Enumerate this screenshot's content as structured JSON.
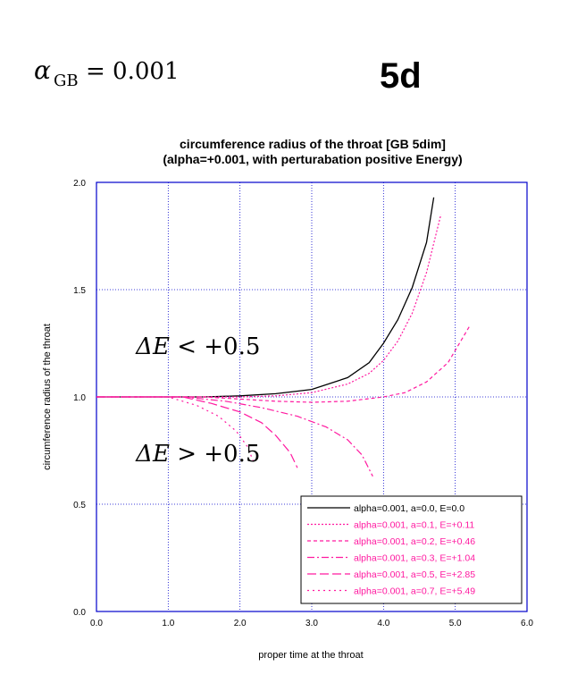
{
  "header": {
    "alpha_symbol": "α",
    "alpha_subscript": "GB",
    "alpha_value": "= 0.001",
    "dimension_label": "5d"
  },
  "chart_data": {
    "type": "line",
    "title": "circumference radius of the throat [GB 5dim]",
    "subtitle": "(alpha=+0.001, with perturabation positive Energy)",
    "xlabel": "proper time at the throat",
    "ylabel": "circumference radius of the throat",
    "xlim": [
      0,
      6
    ],
    "ylim": [
      0,
      2
    ],
    "xticks": [
      "0.0",
      "1.0",
      "2.0",
      "3.0",
      "4.0",
      "5.0",
      "6.0"
    ],
    "yticks": [
      "0.0",
      "0.5",
      "1.0",
      "1.5",
      "2.0"
    ],
    "grid": true,
    "legend_position": "bottom-right",
    "annotations": [
      {
        "prefix": "ΔE",
        "rest": " < +0.5",
        "x": 0.55,
        "y": 1.2
      },
      {
        "prefix": "ΔE",
        "rest": " > +0.5",
        "x": 0.55,
        "y": 0.7
      }
    ],
    "series": [
      {
        "name": "alpha=0.001, a=0.0, E=0.0",
        "color": "#000000",
        "dash": "",
        "points": [
          [
            0,
            1.0
          ],
          [
            1.5,
            1.0
          ],
          [
            2.0,
            1.005
          ],
          [
            2.5,
            1.015
          ],
          [
            3.0,
            1.035
          ],
          [
            3.5,
            1.09
          ],
          [
            3.8,
            1.16
          ],
          [
            4.0,
            1.25
          ],
          [
            4.2,
            1.36
          ],
          [
            4.4,
            1.51
          ],
          [
            4.6,
            1.72
          ],
          [
            4.7,
            1.93
          ]
        ]
      },
      {
        "name": "alpha=0.001, a=0.1, E=+0.11",
        "color": "#ff1aa0",
        "dash": "2,2",
        "points": [
          [
            0,
            1.0
          ],
          [
            1.5,
            1.0
          ],
          [
            2.0,
            1.0
          ],
          [
            2.5,
            1.005
          ],
          [
            3.0,
            1.02
          ],
          [
            3.5,
            1.06
          ],
          [
            3.8,
            1.11
          ],
          [
            4.0,
            1.17
          ],
          [
            4.2,
            1.26
          ],
          [
            4.4,
            1.39
          ],
          [
            4.6,
            1.58
          ],
          [
            4.8,
            1.85
          ]
        ]
      },
      {
        "name": "alpha=0.001, a=0.2, E=+0.46",
        "color": "#ff1aa0",
        "dash": "4,3",
        "points": [
          [
            0,
            1.0
          ],
          [
            1.5,
            1.0
          ],
          [
            2.0,
            0.99
          ],
          [
            2.5,
            0.98
          ],
          [
            3.0,
            0.975
          ],
          [
            3.5,
            0.98
          ],
          [
            4.0,
            1.0
          ],
          [
            4.3,
            1.02
          ],
          [
            4.6,
            1.07
          ],
          [
            4.9,
            1.16
          ],
          [
            5.2,
            1.33
          ]
        ]
      },
      {
        "name": "alpha=0.001, a=0.3, E=+1.04",
        "color": "#ff1aa0",
        "dash": "8,3,2,3",
        "points": [
          [
            0,
            1.0
          ],
          [
            1.2,
            1.0
          ],
          [
            1.8,
            0.98
          ],
          [
            2.3,
            0.95
          ],
          [
            2.8,
            0.91
          ],
          [
            3.2,
            0.86
          ],
          [
            3.5,
            0.8
          ],
          [
            3.7,
            0.73
          ],
          [
            3.85,
            0.63
          ]
        ]
      },
      {
        "name": "alpha=0.001, a=0.5, E=+2.85",
        "color": "#ff1aa0",
        "dash": "10,4",
        "points": [
          [
            0,
            1.0
          ],
          [
            1.2,
            1.0
          ],
          [
            1.6,
            0.97
          ],
          [
            2.0,
            0.93
          ],
          [
            2.3,
            0.88
          ],
          [
            2.5,
            0.82
          ],
          [
            2.7,
            0.74
          ],
          [
            2.8,
            0.67
          ]
        ]
      },
      {
        "name": "alpha=0.001, a=0.7, E=+5.49",
        "color": "#ff1aa0",
        "dash": "2,4",
        "points": [
          [
            0,
            1.0
          ],
          [
            1.0,
            1.0
          ],
          [
            1.4,
            0.96
          ],
          [
            1.7,
            0.91
          ],
          [
            1.95,
            0.84
          ],
          [
            2.1,
            0.77
          ],
          [
            2.2,
            0.69
          ]
        ]
      }
    ]
  }
}
